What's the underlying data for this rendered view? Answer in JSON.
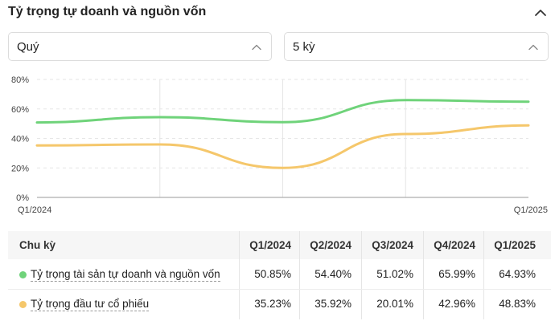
{
  "header": {
    "title": "Tỷ trọng tự doanh và nguồn vốn"
  },
  "filters": {
    "period": "Quý",
    "count": "5 kỳ"
  },
  "colors": {
    "green": "#6fd37a",
    "yellow": "#f5c76b",
    "grid": "#e6e6e6",
    "axis": "#9a9a9a"
  },
  "chart_data": {
    "type": "line",
    "x": [
      "Q1/2024",
      "Q2/2024",
      "Q3/2024",
      "Q4/2024",
      "Q1/2025"
    ],
    "x_tick_labels": [
      "Q1/2024",
      "Q1/2025"
    ],
    "y_ticks": [
      "0%",
      "20%",
      "40%",
      "60%",
      "80%"
    ],
    "ylim": [
      0,
      80
    ],
    "series": [
      {
        "name": "Tỷ trọng tài sản tự doanh và nguồn vốn",
        "values": [
          50.85,
          54.4,
          51.02,
          65.99,
          64.93
        ]
      },
      {
        "name": "Tỷ trọng đầu tư cổ phiếu",
        "values": [
          35.23,
          35.92,
          20.01,
          42.96,
          48.83
        ]
      }
    ]
  },
  "table": {
    "header_label": "Chu kỳ",
    "columns": [
      "Q1/2024",
      "Q2/2024",
      "Q3/2024",
      "Q4/2024",
      "Q1/2025"
    ],
    "rows": [
      {
        "label": "Tỷ trọng tài sản tự doanh và nguồn vốn",
        "values": [
          "50.85%",
          "54.40%",
          "51.02%",
          "65.99%",
          "64.93%"
        ]
      },
      {
        "label": "Tỷ trọng đầu tư cổ phiếu",
        "values": [
          "35.23%",
          "35.92%",
          "20.01%",
          "42.96%",
          "48.83%"
        ]
      }
    ]
  }
}
